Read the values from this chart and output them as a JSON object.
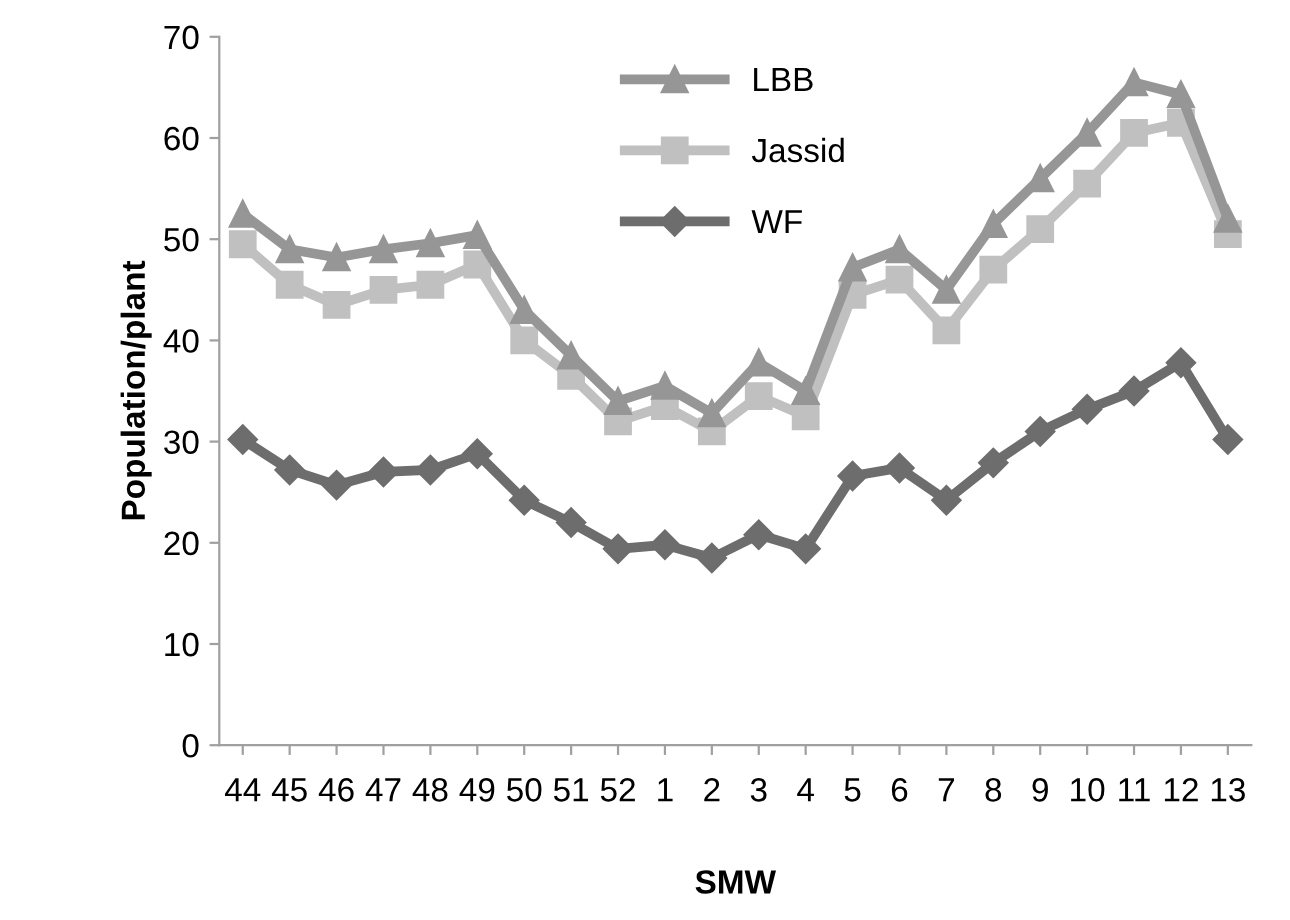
{
  "chart_data": {
    "type": "line",
    "xlabel": "SMW",
    "ylabel": "Population/plant",
    "categories": [
      "44",
      "45",
      "46",
      "47",
      "48",
      "49",
      "50",
      "51",
      "52",
      "1",
      "2",
      "3",
      "4",
      "5",
      "6",
      "7",
      "8",
      "9",
      "10",
      "11",
      "12",
      "13"
    ],
    "series": [
      {
        "name": "LBB",
        "color": "#969696",
        "marker": "triangle",
        "values": [
          52.5,
          49,
          48.2,
          49,
          49.6,
          50.4,
          43,
          38.5,
          34,
          35.5,
          32.8,
          37.8,
          35,
          47.2,
          49,
          45,
          51.5,
          56,
          60.5,
          65.5,
          64.3,
          52
        ]
      },
      {
        "name": "Jassid",
        "color": "#c0c0c0",
        "marker": "square",
        "values": [
          49.5,
          45.5,
          43.5,
          45,
          45.5,
          47.5,
          40,
          36.5,
          32,
          33.5,
          31,
          34.5,
          32.5,
          44.5,
          46,
          41,
          47,
          51,
          55.5,
          60.5,
          61.5,
          50.5
        ]
      },
      {
        "name": "WF",
        "color": "#6d6d6d",
        "marker": "diamond",
        "values": [
          30.2,
          27.2,
          25.7,
          27,
          27.2,
          28.8,
          24.2,
          22,
          19.4,
          19.8,
          18.5,
          20.8,
          19.4,
          26.6,
          27.4,
          24.2,
          27.9,
          31,
          33.2,
          35,
          37.8,
          30.2
        ]
      }
    ],
    "ylim": [
      0,
      70
    ],
    "yticks": [
      0,
      10,
      20,
      30,
      40,
      50,
      60,
      70
    ],
    "grid": false,
    "legend": "top",
    "line_style": "solid"
  }
}
